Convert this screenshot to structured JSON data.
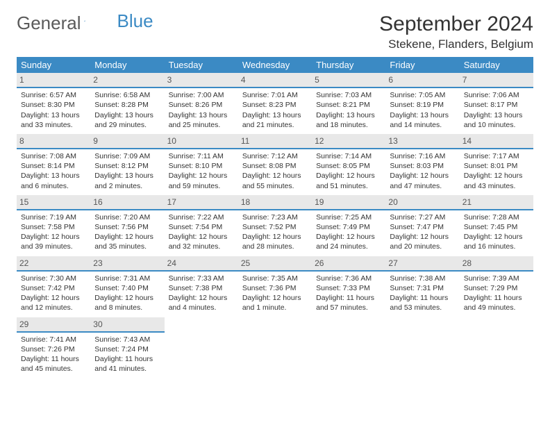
{
  "brand": {
    "part1": "General",
    "part2": "Blue"
  },
  "title": "September 2024",
  "location": "Stekene, Flanders, Belgium",
  "colors": {
    "header_bg": "#3b8ac4",
    "daynum_bg": "#e8e8e8",
    "accent": "#3b8ac4"
  },
  "weekdays": [
    "Sunday",
    "Monday",
    "Tuesday",
    "Wednesday",
    "Thursday",
    "Friday",
    "Saturday"
  ],
  "weeks": [
    [
      {
        "n": "1",
        "sunrise": "Sunrise: 6:57 AM",
        "sunset": "Sunset: 8:30 PM",
        "daylight": "Daylight: 13 hours and 33 minutes."
      },
      {
        "n": "2",
        "sunrise": "Sunrise: 6:58 AM",
        "sunset": "Sunset: 8:28 PM",
        "daylight": "Daylight: 13 hours and 29 minutes."
      },
      {
        "n": "3",
        "sunrise": "Sunrise: 7:00 AM",
        "sunset": "Sunset: 8:26 PM",
        "daylight": "Daylight: 13 hours and 25 minutes."
      },
      {
        "n": "4",
        "sunrise": "Sunrise: 7:01 AM",
        "sunset": "Sunset: 8:23 PM",
        "daylight": "Daylight: 13 hours and 21 minutes."
      },
      {
        "n": "5",
        "sunrise": "Sunrise: 7:03 AM",
        "sunset": "Sunset: 8:21 PM",
        "daylight": "Daylight: 13 hours and 18 minutes."
      },
      {
        "n": "6",
        "sunrise": "Sunrise: 7:05 AM",
        "sunset": "Sunset: 8:19 PM",
        "daylight": "Daylight: 13 hours and 14 minutes."
      },
      {
        "n": "7",
        "sunrise": "Sunrise: 7:06 AM",
        "sunset": "Sunset: 8:17 PM",
        "daylight": "Daylight: 13 hours and 10 minutes."
      }
    ],
    [
      {
        "n": "8",
        "sunrise": "Sunrise: 7:08 AM",
        "sunset": "Sunset: 8:14 PM",
        "daylight": "Daylight: 13 hours and 6 minutes."
      },
      {
        "n": "9",
        "sunrise": "Sunrise: 7:09 AM",
        "sunset": "Sunset: 8:12 PM",
        "daylight": "Daylight: 13 hours and 2 minutes."
      },
      {
        "n": "10",
        "sunrise": "Sunrise: 7:11 AM",
        "sunset": "Sunset: 8:10 PM",
        "daylight": "Daylight: 12 hours and 59 minutes."
      },
      {
        "n": "11",
        "sunrise": "Sunrise: 7:12 AM",
        "sunset": "Sunset: 8:08 PM",
        "daylight": "Daylight: 12 hours and 55 minutes."
      },
      {
        "n": "12",
        "sunrise": "Sunrise: 7:14 AM",
        "sunset": "Sunset: 8:05 PM",
        "daylight": "Daylight: 12 hours and 51 minutes."
      },
      {
        "n": "13",
        "sunrise": "Sunrise: 7:16 AM",
        "sunset": "Sunset: 8:03 PM",
        "daylight": "Daylight: 12 hours and 47 minutes."
      },
      {
        "n": "14",
        "sunrise": "Sunrise: 7:17 AM",
        "sunset": "Sunset: 8:01 PM",
        "daylight": "Daylight: 12 hours and 43 minutes."
      }
    ],
    [
      {
        "n": "15",
        "sunrise": "Sunrise: 7:19 AM",
        "sunset": "Sunset: 7:58 PM",
        "daylight": "Daylight: 12 hours and 39 minutes."
      },
      {
        "n": "16",
        "sunrise": "Sunrise: 7:20 AM",
        "sunset": "Sunset: 7:56 PM",
        "daylight": "Daylight: 12 hours and 35 minutes."
      },
      {
        "n": "17",
        "sunrise": "Sunrise: 7:22 AM",
        "sunset": "Sunset: 7:54 PM",
        "daylight": "Daylight: 12 hours and 32 minutes."
      },
      {
        "n": "18",
        "sunrise": "Sunrise: 7:23 AM",
        "sunset": "Sunset: 7:52 PM",
        "daylight": "Daylight: 12 hours and 28 minutes."
      },
      {
        "n": "19",
        "sunrise": "Sunrise: 7:25 AM",
        "sunset": "Sunset: 7:49 PM",
        "daylight": "Daylight: 12 hours and 24 minutes."
      },
      {
        "n": "20",
        "sunrise": "Sunrise: 7:27 AM",
        "sunset": "Sunset: 7:47 PM",
        "daylight": "Daylight: 12 hours and 20 minutes."
      },
      {
        "n": "21",
        "sunrise": "Sunrise: 7:28 AM",
        "sunset": "Sunset: 7:45 PM",
        "daylight": "Daylight: 12 hours and 16 minutes."
      }
    ],
    [
      {
        "n": "22",
        "sunrise": "Sunrise: 7:30 AM",
        "sunset": "Sunset: 7:42 PM",
        "daylight": "Daylight: 12 hours and 12 minutes."
      },
      {
        "n": "23",
        "sunrise": "Sunrise: 7:31 AM",
        "sunset": "Sunset: 7:40 PM",
        "daylight": "Daylight: 12 hours and 8 minutes."
      },
      {
        "n": "24",
        "sunrise": "Sunrise: 7:33 AM",
        "sunset": "Sunset: 7:38 PM",
        "daylight": "Daylight: 12 hours and 4 minutes."
      },
      {
        "n": "25",
        "sunrise": "Sunrise: 7:35 AM",
        "sunset": "Sunset: 7:36 PM",
        "daylight": "Daylight: 12 hours and 1 minute."
      },
      {
        "n": "26",
        "sunrise": "Sunrise: 7:36 AM",
        "sunset": "Sunset: 7:33 PM",
        "daylight": "Daylight: 11 hours and 57 minutes."
      },
      {
        "n": "27",
        "sunrise": "Sunrise: 7:38 AM",
        "sunset": "Sunset: 7:31 PM",
        "daylight": "Daylight: 11 hours and 53 minutes."
      },
      {
        "n": "28",
        "sunrise": "Sunrise: 7:39 AM",
        "sunset": "Sunset: 7:29 PM",
        "daylight": "Daylight: 11 hours and 49 minutes."
      }
    ],
    [
      {
        "n": "29",
        "sunrise": "Sunrise: 7:41 AM",
        "sunset": "Sunset: 7:26 PM",
        "daylight": "Daylight: 11 hours and 45 minutes."
      },
      {
        "n": "30",
        "sunrise": "Sunrise: 7:43 AM",
        "sunset": "Sunset: 7:24 PM",
        "daylight": "Daylight: 11 hours and 41 minutes."
      },
      null,
      null,
      null,
      null,
      null
    ]
  ]
}
